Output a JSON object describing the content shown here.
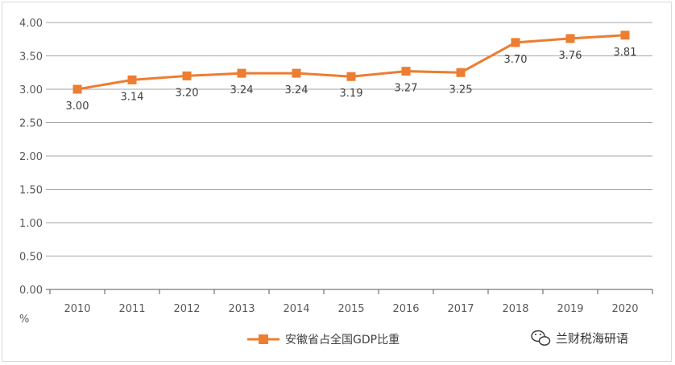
{
  "chart_data": {
    "type": "line",
    "categories": [
      "2010",
      "2011",
      "2012",
      "2013",
      "2014",
      "2015",
      "2016",
      "2017",
      "2018",
      "2019",
      "2020"
    ],
    "series": [
      {
        "name": "安徽省占全国GDP比重",
        "values": [
          3.0,
          3.14,
          3.2,
          3.24,
          3.24,
          3.19,
          3.27,
          3.25,
          3.7,
          3.76,
          3.81
        ],
        "labels": [
          "3.00",
          "3.14",
          "3.20",
          "3.24",
          "3.24",
          "3.19",
          "3.27",
          "3.25",
          "3.70",
          "3.76",
          "3.81"
        ]
      }
    ],
    "yticks": [
      "0.00",
      "0.50",
      "1.00",
      "1.50",
      "2.00",
      "2.50",
      "3.00",
      "3.50",
      "4.00"
    ],
    "ylim": [
      0,
      4
    ],
    "ylabel": "%",
    "grid": true,
    "legend_position": "bottom-center",
    "colors": {
      "series": "#ED7D31",
      "grid": "#a6a6a6",
      "axis": "#595959"
    }
  },
  "watermark": {
    "text": "兰财税海研语",
    "icon": "wechat-icon"
  }
}
